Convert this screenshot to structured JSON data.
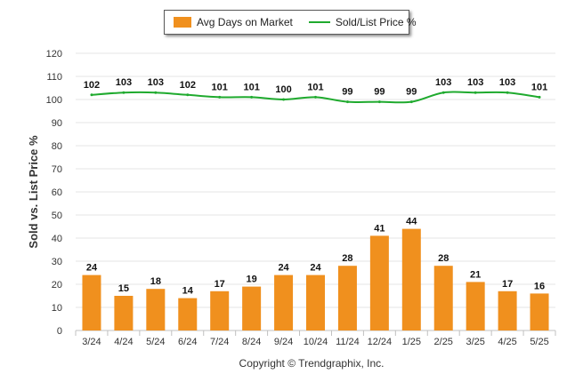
{
  "chart_data": {
    "type": "bar",
    "categories": [
      "3/24",
      "4/24",
      "5/24",
      "6/24",
      "7/24",
      "8/24",
      "9/24",
      "10/24",
      "11/24",
      "12/24",
      "1/25",
      "2/25",
      "3/25",
      "4/25",
      "5/25"
    ],
    "series": [
      {
        "name": "Avg Days on Market",
        "type": "bar",
        "color": "#f0901e",
        "values": [
          24,
          15,
          18,
          14,
          17,
          19,
          24,
          24,
          28,
          41,
          44,
          28,
          21,
          17,
          16
        ]
      },
      {
        "name": "Sold/List Price %",
        "type": "line",
        "color": "#1faa2e",
        "values": [
          102,
          103,
          103,
          102,
          101,
          101,
          100,
          101,
          99,
          99,
          99,
          103,
          103,
          103,
          101
        ]
      }
    ],
    "ylabel": "Sold vs. List Price %",
    "ylim": [
      0,
      120
    ],
    "yticks": [
      0,
      10,
      20,
      30,
      40,
      50,
      60,
      70,
      80,
      90,
      100,
      110,
      120
    ],
    "grid": true,
    "legend_position": "top-center"
  },
  "footer": {
    "copyright": "Copyright © Trendgraphix, Inc."
  }
}
